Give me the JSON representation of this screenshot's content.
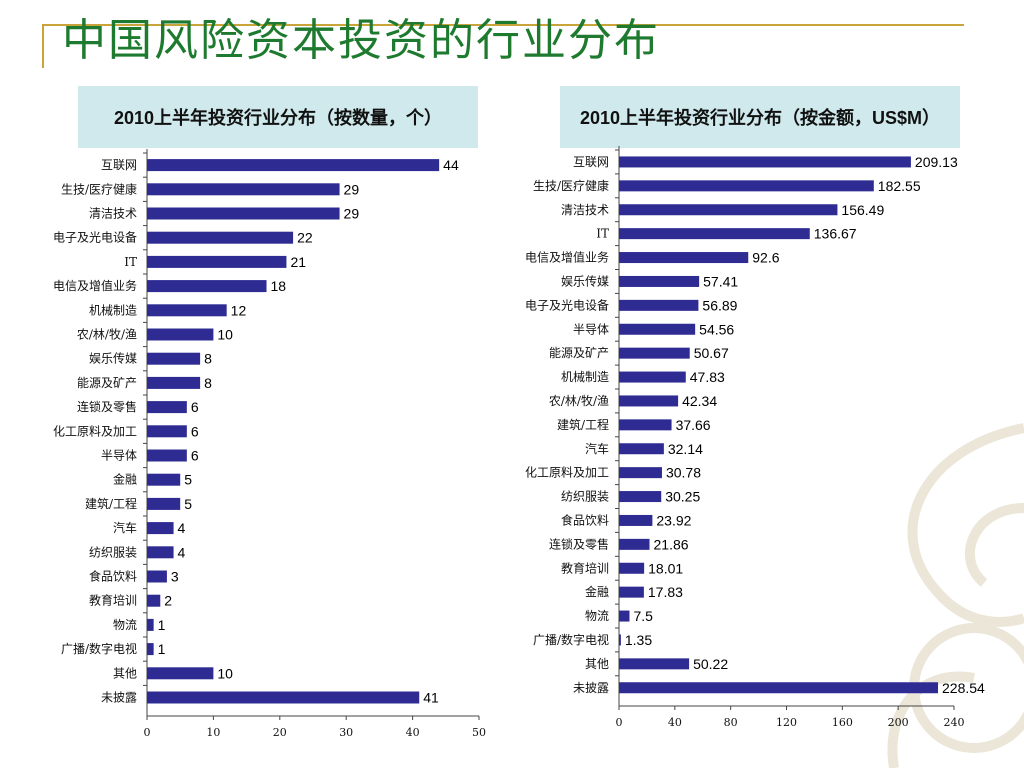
{
  "slide": {
    "title": "中国风险资本投资的行业分布"
  },
  "colors": {
    "title": "#1e7a2e",
    "accent": "#c9a43a",
    "bar": "#2e2c93",
    "header_bg": "#cfe9ec"
  },
  "chart_data": [
    {
      "type": "bar",
      "orientation": "horizontal",
      "title": "2010上半年投资行业分布（按数量，个）",
      "categories": [
        "互联网",
        "生技/医疗健康",
        "清洁技术",
        "电子及光电设备",
        "IT",
        "电信及增值业务",
        "机械制造",
        "农/林/牧/渔",
        "娱乐传媒",
        "能源及矿产",
        "连锁及零售",
        "化工原料及加工",
        "半导体",
        "金融",
        "建筑/工程",
        "汽车",
        "纺织服装",
        "食品饮料",
        "教育培训",
        "物流",
        "广播/数字电视",
        "其他",
        "未披露"
      ],
      "values": [
        44,
        29,
        29,
        22,
        21,
        18,
        12,
        10,
        8,
        8,
        6,
        6,
        6,
        5,
        5,
        4,
        4,
        3,
        2,
        1,
        1,
        10,
        41
      ],
      "value_labels": [
        "44",
        "29",
        "29",
        "22",
        "21",
        "18",
        "12",
        "10",
        "8",
        "8",
        "6",
        "6",
        "6",
        "5",
        "5",
        "4",
        "4",
        "3",
        "2",
        "1",
        "1",
        "10",
        "41"
      ],
      "xlim": [
        0,
        50
      ],
      "xticks": [
        "0",
        "10",
        "20",
        "30",
        "40",
        "50"
      ],
      "grid": false
    },
    {
      "type": "bar",
      "orientation": "horizontal",
      "title": "2010上半年投资行业分布（按金额，US$M）",
      "categories": [
        "互联网",
        "生技/医疗健康",
        "清洁技术",
        "IT",
        "电信及增值业务",
        "娱乐传媒",
        "电子及光电设备",
        "半导体",
        "能源及矿产",
        "机械制造",
        "农/林/牧/渔",
        "建筑/工程",
        "汽车",
        "化工原料及加工",
        "纺织服装",
        "食品饮料",
        "连锁及零售",
        "教育培训",
        "金融",
        "物流",
        "广播/数字电视",
        "其他",
        "未披露"
      ],
      "values": [
        209.13,
        182.55,
        156.49,
        136.67,
        92.6,
        57.41,
        56.89,
        54.56,
        50.67,
        47.83,
        42.34,
        37.66,
        32.14,
        30.78,
        30.25,
        23.92,
        21.86,
        18.01,
        17.83,
        7.5,
        1.35,
        50.22,
        228.54
      ],
      "value_labels": [
        "209.13",
        "182.55",
        "156.49",
        "136.67",
        "92.6",
        "57.41",
        "56.89",
        "54.56",
        "50.67",
        "47.83",
        "42.34",
        "37.66",
        "32.14",
        "30.78",
        "30.25",
        "23.92",
        "21.86",
        "18.01",
        "17.83",
        "7.5",
        "1.35",
        "50.22",
        "228.54"
      ],
      "xlim": [
        0,
        240
      ],
      "xticks": [
        "0",
        "40",
        "80",
        "120",
        "160",
        "200",
        "240"
      ],
      "grid": false
    }
  ]
}
